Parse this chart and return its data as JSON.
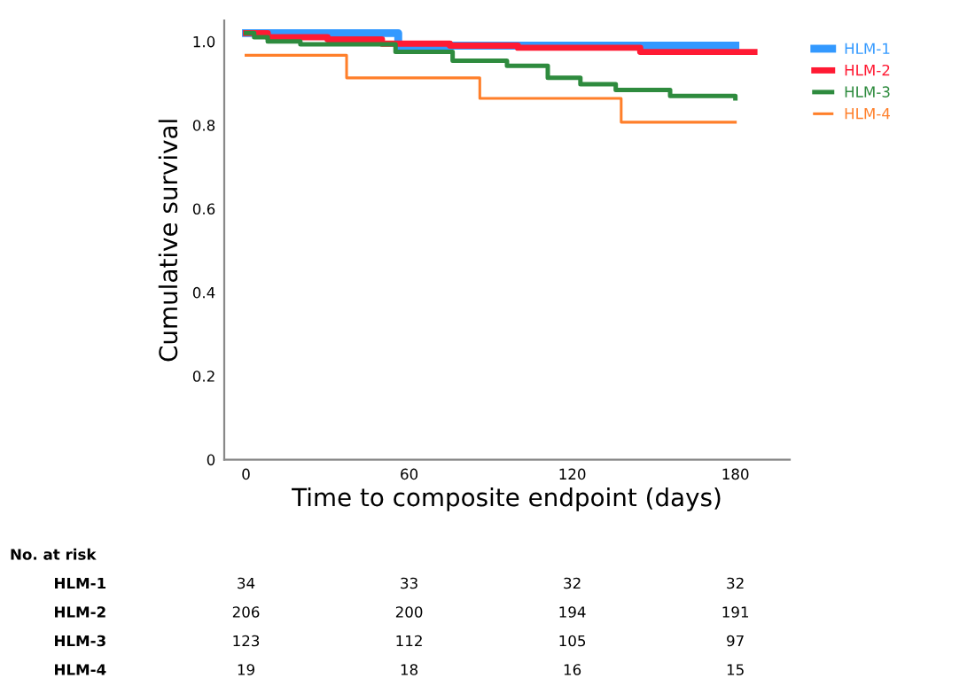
{
  "chart_data": {
    "type": "step",
    "xlabel": "Time to composite endpoint (days)",
    "ylabel": "Cumulative survival",
    "xlim": [
      -8,
      200
    ],
    "xticks": [
      0,
      60,
      120,
      180
    ],
    "ylim": [
      0,
      1.05
    ],
    "yticks": [
      {
        "value": 0,
        "label": "0"
      },
      {
        "value": 0.2,
        "label": "0.2"
      },
      {
        "value": 0.4,
        "label": "0.4"
      },
      {
        "value": 0.6,
        "label": "0.6"
      },
      {
        "value": 0.8,
        "label": "0.8"
      },
      {
        "value": 1.0,
        "label": "1.0"
      }
    ],
    "grid": false,
    "legend": "top right",
    "line_style": "solid",
    "series": [
      {
        "name": "HLM-1",
        "color": "#3399ff",
        "x": [
          0,
          56,
          180
        ],
        "values": [
          1.02,
          0.99,
          0.99
        ]
      },
      {
        "name": "HLM-2",
        "color": "#ff1a33",
        "x": [
          0,
          8,
          30,
          50,
          75,
          100,
          145,
          187
        ],
        "values": [
          1.02,
          1.01,
          1.005,
          0.995,
          0.99,
          0.985,
          0.975,
          0.975
        ]
      },
      {
        "name": "HLM-3",
        "color": "#2e8b3e",
        "x": [
          0,
          3,
          8,
          20,
          55,
          76,
          96,
          111,
          123,
          136,
          156,
          180
        ],
        "values": [
          1.02,
          1.01,
          1.0,
          0.993,
          0.975,
          0.954,
          0.942,
          0.913,
          0.898,
          0.884,
          0.87,
          0.864
        ]
      },
      {
        "name": "HLM-4",
        "color": "#ff7f2a",
        "x": [
          0,
          37,
          86,
          138,
          180
        ],
        "values": [
          0.967,
          0.913,
          0.864,
          0.807,
          0.807
        ]
      }
    ],
    "annotations": [
      "No. at risk",
      "HLM-1",
      "34",
      "33",
      "32",
      "32",
      "HLM-2",
      "206",
      "200",
      "194",
      "191",
      "HLM-3",
      "123",
      "112",
      "105",
      "97",
      "HLM-4",
      "19",
      "18",
      "16",
      "15"
    ]
  }
}
